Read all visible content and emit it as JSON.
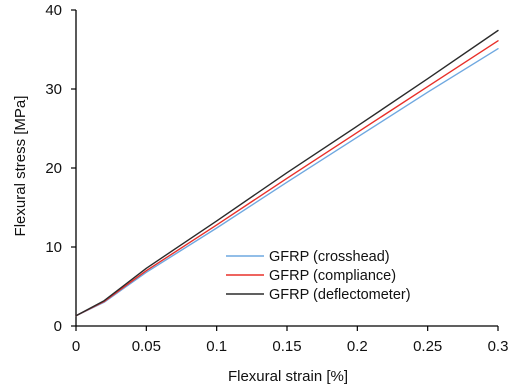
{
  "chart_data": {
    "type": "line",
    "xlabel": "Flexural strain [%]",
    "ylabel": "Flexural stress [MPa]",
    "xlim": [
      0,
      0.3
    ],
    "ylim": [
      0,
      40
    ],
    "x_ticks": [
      0,
      0.05,
      0.1,
      0.15,
      0.2,
      0.25,
      0.3
    ],
    "x_tick_labels": [
      "0",
      "0.05",
      "0.1",
      "0.15",
      "0.2",
      "0.25",
      "0.3"
    ],
    "y_ticks": [
      0,
      10,
      20,
      30,
      40
    ],
    "y_tick_labels": [
      "0",
      "10",
      "20",
      "30",
      "40"
    ],
    "grid": false,
    "legend_position": "center-right",
    "series": [
      {
        "name": "GFRP (crosshead)",
        "color": "#6fa8e0",
        "x": [
          0,
          0.02,
          0.05,
          0.1,
          0.15,
          0.2,
          0.25,
          0.3
        ],
        "y": [
          1.3,
          3.0,
          6.8,
          12.4,
          18.2,
          23.9,
          29.6,
          35.1
        ]
      },
      {
        "name": "GFRP (compliance)",
        "color": "#e8302a",
        "x": [
          0,
          0.02,
          0.05,
          0.1,
          0.15,
          0.2,
          0.25,
          0.3
        ],
        "y": [
          1.3,
          3.1,
          7.0,
          12.8,
          18.7,
          24.5,
          30.3,
          36.1
        ]
      },
      {
        "name": "GFRP (deflectometer)",
        "color": "#2b2b2b",
        "x": [
          0,
          0.02,
          0.05,
          0.1,
          0.15,
          0.2,
          0.25,
          0.3
        ],
        "y": [
          1.3,
          3.2,
          7.3,
          13.3,
          19.4,
          25.3,
          31.3,
          37.4
        ]
      }
    ]
  }
}
